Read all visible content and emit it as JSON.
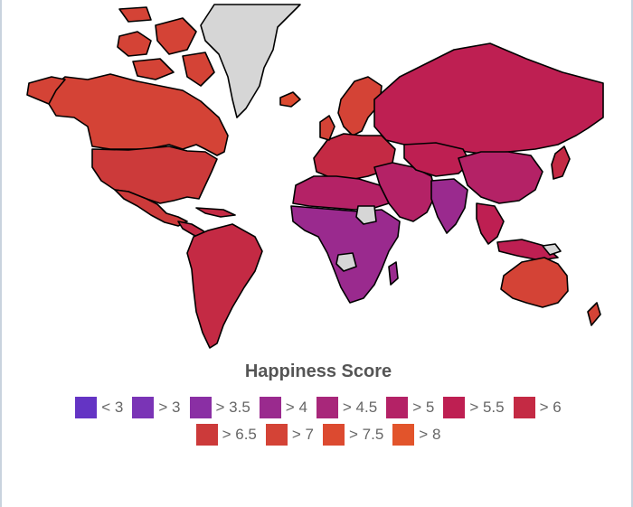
{
  "map": {
    "colors": {
      "no_data": "#d6d6d6",
      "border": "#000000",
      "background": "#ffffff"
    },
    "regions": [
      {
        "name": "canada-region",
        "band": "> 7"
      },
      {
        "name": "usa-region",
        "band": "> 6.5"
      },
      {
        "name": "greenland-region",
        "band": "no-data"
      },
      {
        "name": "mexico-region",
        "band": "> 6.5"
      },
      {
        "name": "central-america-region",
        "band": "> 6"
      },
      {
        "name": "south-america-region",
        "band": "> 6"
      },
      {
        "name": "europe-region",
        "band": "> 6"
      },
      {
        "name": "scandinavia-region",
        "band": "> 7"
      },
      {
        "name": "russia-region",
        "band": "> 5.5"
      },
      {
        "name": "middle-east-region",
        "band": "> 5"
      },
      {
        "name": "north-africa-region",
        "band": "> 5"
      },
      {
        "name": "sub-saharan-africa-region",
        "band": "> 4"
      },
      {
        "name": "india-region",
        "band": "> 4"
      },
      {
        "name": "china-region",
        "band": "> 5"
      },
      {
        "name": "southeast-asia-region",
        "band": "> 5.5"
      },
      {
        "name": "australia-region",
        "band": "> 7"
      },
      {
        "name": "new-zealand-region",
        "band": "> 7"
      }
    ]
  },
  "legend": {
    "title": "Happiness Score",
    "items": [
      {
        "label": "< 3",
        "color": "#6434c4"
      },
      {
        "label": "> 3",
        "color": "#7a34b6"
      },
      {
        "label": "> 3.5",
        "color": "#8a2fa4"
      },
      {
        "label": "> 4",
        "color": "#9a2a8e"
      },
      {
        "label": "> 4.5",
        "color": "#a8277a"
      },
      {
        "label": "> 5",
        "color": "#b42266"
      },
      {
        "label": "> 5.5",
        "color": "#be1f52"
      },
      {
        "label": "> 6",
        "color": "#c42a44"
      },
      {
        "label": "> 6.5",
        "color": "#cc3a3a"
      },
      {
        "label": "> 7",
        "color": "#d44336"
      },
      {
        "label": "> 7.5",
        "color": "#dc4a30"
      },
      {
        "label": "> 8",
        "color": "#e2542b"
      }
    ]
  }
}
